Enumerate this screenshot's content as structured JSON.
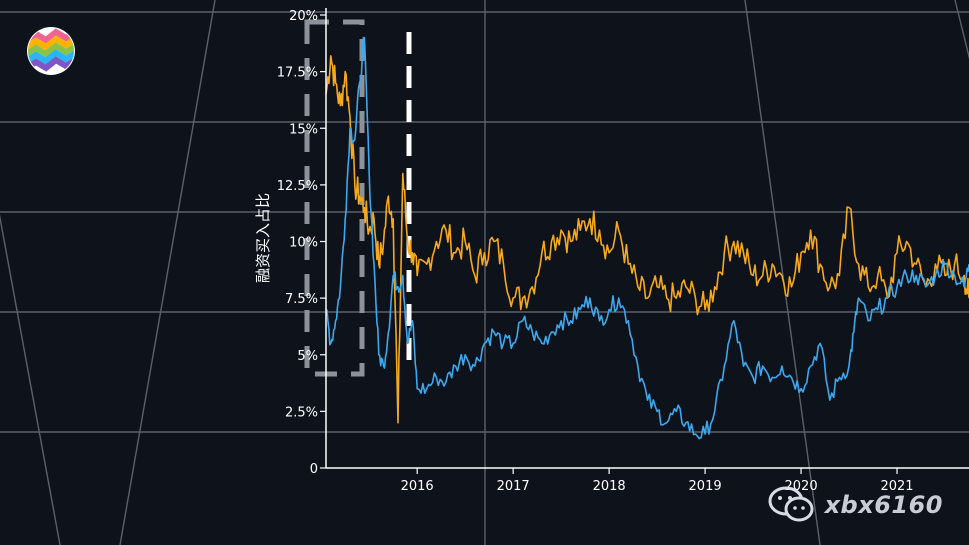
{
  "chart_data": {
    "type": "line",
    "title": "",
    "xlabel": "",
    "ylabel": "融资买入占比",
    "x_ticks": [
      "2016",
      "2017",
      "2018",
      "2019",
      "2020",
      "2021"
    ],
    "y_ticks": [
      "0",
      "2.5%",
      "5%",
      "7.5%",
      "10%",
      "12.5%",
      "15%",
      "17.5%",
      "20%"
    ],
    "xlim": [
      2015.05,
      2021.75
    ],
    "ylim": [
      0,
      20
    ],
    "grid": true,
    "legend": "none",
    "series": [
      {
        "color": "#f7a81b",
        "x": [
          2015.05,
          2015.1,
          2015.15,
          2015.2,
          2015.25,
          2015.3,
          2015.35,
          2015.4,
          2015.45,
          2015.5,
          2015.55,
          2015.6,
          2015.65,
          2015.7,
          2015.75,
          2015.8,
          2015.85,
          2015.9,
          2015.95,
          2016.0,
          2016.1,
          2016.2,
          2016.3,
          2016.4,
          2016.5,
          2016.6,
          2016.7,
          2016.8,
          2016.9,
          2017.0,
          2017.1,
          2017.2,
          2017.3,
          2017.4,
          2017.5,
          2017.6,
          2017.7,
          2017.8,
          2017.9,
          2018.0,
          2018.1,
          2018.2,
          2018.3,
          2018.4,
          2018.5,
          2018.6,
          2018.7,
          2018.8,
          2018.9,
          2019.0,
          2019.1,
          2019.2,
          2019.3,
          2019.4,
          2019.5,
          2019.6,
          2019.7,
          2019.8,
          2019.9,
          2020.0,
          2020.1,
          2020.2,
          2020.3,
          2020.4,
          2020.5,
          2020.6,
          2020.7,
          2020.8,
          2020.9,
          2021.0,
          2021.1,
          2021.2,
          2021.3,
          2021.4,
          2021.5,
          2021.6,
          2021.7,
          2021.75
        ],
        "y": [
          16.5,
          18.2,
          17.0,
          16.0,
          17.5,
          15.5,
          12.5,
          12.0,
          11.5,
          10.5,
          11.0,
          9.0,
          10.0,
          12.0,
          11.0,
          2.0,
          13.0,
          10.0,
          9.5,
          8.5,
          9.0,
          10.0,
          10.5,
          9.5,
          10.0,
          8.5,
          9.5,
          10.0,
          9.0,
          7.5,
          7.5,
          8.0,
          9.5,
          10.0,
          10.5,
          10.0,
          10.5,
          11.0,
          10.5,
          9.5,
          10.5,
          9.0,
          8.0,
          7.5,
          8.0,
          7.5,
          7.5,
          8.0,
          7.5,
          7.0,
          8.0,
          9.5,
          10.0,
          9.5,
          8.5,
          8.5,
          9.0,
          8.5,
          8.0,
          9.5,
          10.5,
          9.0,
          8.0,
          8.5,
          11.5,
          9.0,
          8.0,
          8.5,
          7.5,
          9.5,
          10.0,
          9.0,
          8.0,
          9.0,
          8.5,
          9.0,
          8.5,
          7.5
        ]
      },
      {
        "color": "#3ba9ef",
        "x": [
          2015.05,
          2015.1,
          2015.15,
          2015.2,
          2015.25,
          2015.3,
          2015.35,
          2015.4,
          2015.45,
          2015.5,
          2015.55,
          2015.6,
          2015.65,
          2015.7,
          2015.75,
          2015.8,
          2015.85,
          2015.9,
          2015.95,
          2016.0,
          2016.1,
          2016.2,
          2016.3,
          2016.4,
          2016.5,
          2016.6,
          2016.7,
          2016.8,
          2016.9,
          2017.0,
          2017.1,
          2017.2,
          2017.3,
          2017.4,
          2017.5,
          2017.6,
          2017.7,
          2017.8,
          2017.9,
          2018.0,
          2018.1,
          2018.2,
          2018.3,
          2018.4,
          2018.5,
          2018.6,
          2018.7,
          2018.8,
          2018.9,
          2019.0,
          2019.1,
          2019.2,
          2019.3,
          2019.4,
          2019.5,
          2019.6,
          2019.7,
          2019.8,
          2019.9,
          2020.0,
          2020.1,
          2020.2,
          2020.3,
          2020.4,
          2020.5,
          2020.55,
          2020.6,
          2020.7,
          2020.8,
          2020.9,
          2021.0,
          2021.1,
          2021.2,
          2021.3,
          2021.4,
          2021.5,
          2021.6,
          2021.7,
          2021.75
        ],
        "y": [
          7.0,
          5.5,
          6.5,
          8.0,
          11.0,
          15.0,
          14.5,
          17.0,
          19.0,
          13.0,
          9.0,
          5.0,
          4.5,
          6.0,
          8.5,
          8.0,
          8.5,
          5.5,
          6.5,
          3.5,
          3.5,
          4.0,
          3.8,
          4.5,
          5.0,
          4.5,
          5.5,
          6.0,
          5.5,
          5.5,
          6.5,
          6.0,
          5.5,
          6.0,
          6.5,
          6.5,
          7.0,
          7.5,
          6.5,
          7.0,
          7.5,
          6.5,
          4.5,
          3.0,
          2.5,
          2.0,
          2.5,
          2.0,
          1.5,
          1.5,
          2.5,
          4.5,
          6.5,
          4.5,
          4.0,
          4.5,
          4.0,
          4.5,
          4.0,
          3.5,
          4.5,
          5.5,
          3.0,
          4.0,
          4.5,
          6.0,
          7.5,
          6.5,
          7.0,
          7.5,
          8.0,
          8.5,
          8.5,
          8.0,
          8.5,
          9.0,
          8.5,
          8.0,
          9.0
        ]
      }
    ]
  },
  "watermark": {
    "text": "xbx6160",
    "icon": "wechat-icon"
  },
  "logo": {
    "icon": "rainbow-logo-icon"
  }
}
